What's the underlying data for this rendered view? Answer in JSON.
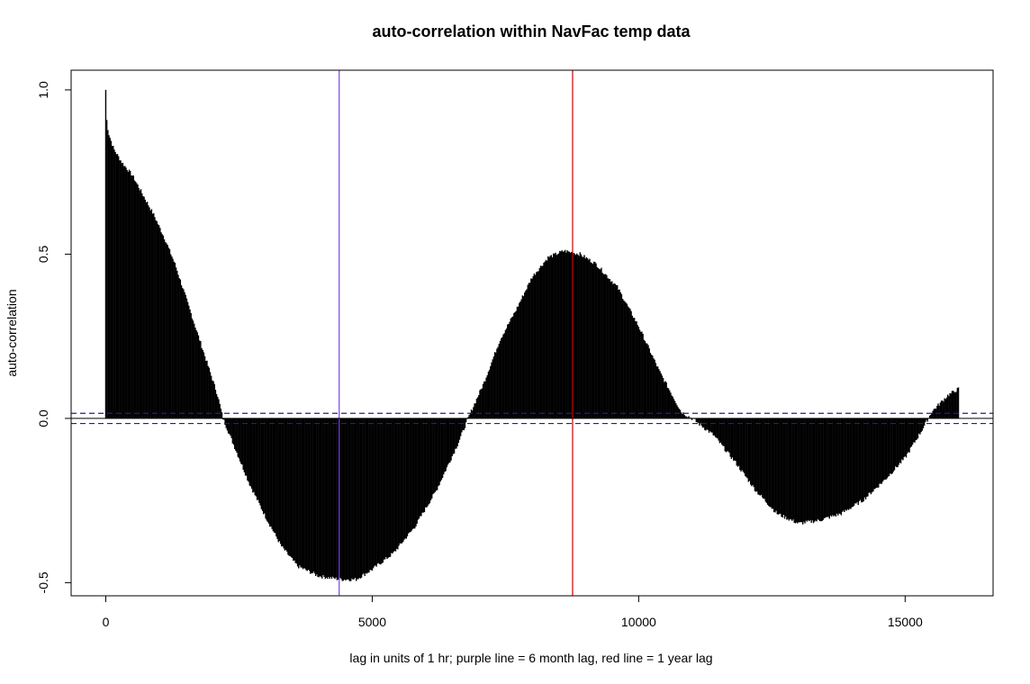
{
  "chart_data": {
    "type": "bar",
    "title": "auto-correlation within NavFac temp data",
    "xlabel": "lag in units of 1 hr; purple line = 6 month lag, red line = 1 year lag",
    "ylabel": "auto-correlation",
    "xlim": [
      -650,
      16650
    ],
    "ylim": [
      -0.54,
      1.06
    ],
    "x_ticks": [
      0,
      5000,
      10000,
      15000
    ],
    "x_tick_labels": [
      "0",
      "5000",
      "10000",
      "15000"
    ],
    "y_ticks": [
      -0.5,
      0.0,
      0.5,
      1.0
    ],
    "y_tick_labels": [
      "-0.5",
      "0.0",
      "0.5",
      "1.0"
    ],
    "grid": false,
    "bar_color": "#000000",
    "lag_max": 16000,
    "acf_curve": [
      {
        "lag": 0,
        "acf": 1.0
      },
      {
        "lag": 10,
        "acf": 0.92
      },
      {
        "lag": 50,
        "acf": 0.87
      },
      {
        "lag": 150,
        "acf": 0.82
      },
      {
        "lag": 300,
        "acf": 0.78
      },
      {
        "lag": 500,
        "acf": 0.74
      },
      {
        "lag": 700,
        "acf": 0.68
      },
      {
        "lag": 900,
        "acf": 0.62
      },
      {
        "lag": 1100,
        "acf": 0.55
      },
      {
        "lag": 1300,
        "acf": 0.47
      },
      {
        "lag": 1500,
        "acf": 0.37
      },
      {
        "lag": 1700,
        "acf": 0.27
      },
      {
        "lag": 1900,
        "acf": 0.17
      },
      {
        "lag": 2100,
        "acf": 0.07
      },
      {
        "lag": 2200,
        "acf": 0.0
      },
      {
        "lag": 2400,
        "acf": -0.08
      },
      {
        "lag": 2700,
        "acf": -0.2
      },
      {
        "lag": 3000,
        "acf": -0.3
      },
      {
        "lag": 3300,
        "acf": -0.39
      },
      {
        "lag": 3600,
        "acf": -0.45
      },
      {
        "lag": 4000,
        "acf": -0.48
      },
      {
        "lag": 4400,
        "acf": -0.49
      },
      {
        "lag": 4700,
        "acf": -0.49
      },
      {
        "lag": 5000,
        "acf": -0.46
      },
      {
        "lag": 5400,
        "acf": -0.41
      },
      {
        "lag": 5800,
        "acf": -0.33
      },
      {
        "lag": 6200,
        "acf": -0.22
      },
      {
        "lag": 6600,
        "acf": -0.08
      },
      {
        "lag": 6800,
        "acf": 0.0
      },
      {
        "lag": 7100,
        "acf": 0.11
      },
      {
        "lag": 7400,
        "acf": 0.24
      },
      {
        "lag": 7700,
        "acf": 0.33
      },
      {
        "lag": 8000,
        "acf": 0.43
      },
      {
        "lag": 8300,
        "acf": 0.49
      },
      {
        "lag": 8600,
        "acf": 0.51
      },
      {
        "lag": 8900,
        "acf": 0.5
      },
      {
        "lag": 9200,
        "acf": 0.47
      },
      {
        "lag": 9600,
        "acf": 0.4
      },
      {
        "lag": 10000,
        "acf": 0.28
      },
      {
        "lag": 10400,
        "acf": 0.14
      },
      {
        "lag": 10800,
        "acf": 0.02
      },
      {
        "lag": 11000,
        "acf": 0.0
      },
      {
        "lag": 11400,
        "acf": -0.05
      },
      {
        "lag": 11800,
        "acf": -0.13
      },
      {
        "lag": 12200,
        "acf": -0.22
      },
      {
        "lag": 12600,
        "acf": -0.29
      },
      {
        "lag": 13000,
        "acf": -0.32
      },
      {
        "lag": 13400,
        "acf": -0.31
      },
      {
        "lag": 13800,
        "acf": -0.29
      },
      {
        "lag": 14200,
        "acf": -0.25
      },
      {
        "lag": 14600,
        "acf": -0.19
      },
      {
        "lag": 15000,
        "acf": -0.12
      },
      {
        "lag": 15300,
        "acf": -0.04
      },
      {
        "lag": 15500,
        "acf": 0.02
      },
      {
        "lag": 15800,
        "acf": 0.07
      },
      {
        "lag": 16000,
        "acf": 0.09
      }
    ],
    "confidence_bounds": {
      "upper": 0.0155,
      "lower": -0.0155,
      "color": "#1f1f8f",
      "style": "dashed"
    },
    "reference_lines": [
      {
        "axis": "x",
        "value": 4380,
        "color": "#7b3fe4"
      },
      {
        "axis": "x",
        "value": 8760,
        "color": "#cc0000"
      },
      {
        "axis": "y",
        "value": 0,
        "color": "#000000"
      }
    ]
  }
}
